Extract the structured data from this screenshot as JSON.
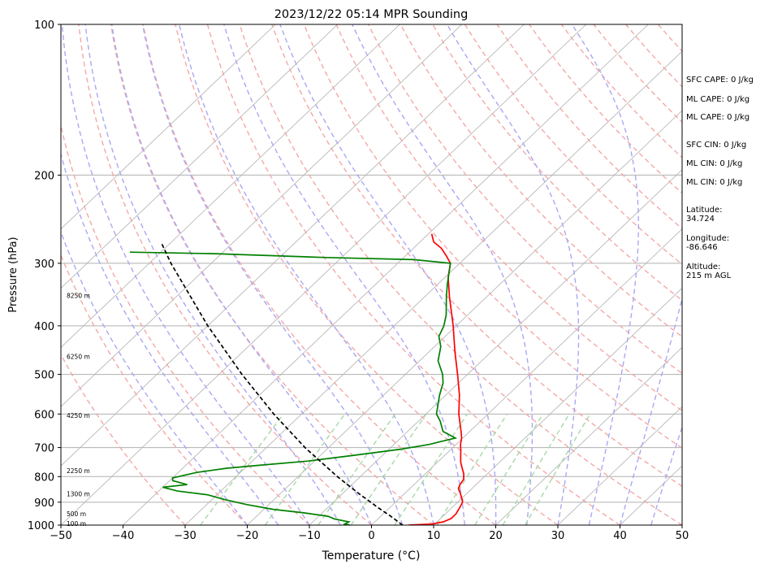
{
  "chart_data": {
    "type": "skew-t",
    "title": "2023/12/22 05:14 MPR Sounding",
    "xlabel": "Temperature (°C)",
    "ylabel": "Pressure (hPa)",
    "xlim": [
      -50,
      50
    ],
    "ylim": [
      1000,
      100
    ],
    "y_scale": "log",
    "grid": true,
    "x_ticks": [
      -50,
      -40,
      -30,
      -20,
      -10,
      0,
      10,
      20,
      30,
      40,
      50
    ],
    "y_ticks": [
      1000,
      900,
      800,
      700,
      600,
      500,
      400,
      300,
      200,
      100
    ],
    "series": [
      {
        "kind": "temperature",
        "color": "#ff0000",
        "points": [
          [
            1000,
            6.0
          ],
          [
            995,
            9.5
          ],
          [
            985,
            11.0
          ],
          [
            970,
            11.7
          ],
          [
            950,
            11.7
          ],
          [
            925,
            11.3
          ],
          [
            900,
            10.8
          ],
          [
            880,
            9.8
          ],
          [
            860,
            8.7
          ],
          [
            845,
            7.8
          ],
          [
            830,
            7.4
          ],
          [
            810,
            7.1
          ],
          [
            790,
            6.2
          ],
          [
            770,
            5.0
          ],
          [
            750,
            3.8
          ],
          [
            730,
            2.8
          ],
          [
            710,
            1.8
          ],
          [
            690,
            0.7
          ],
          [
            670,
            -0.2
          ],
          [
            650,
            -1.4
          ],
          [
            600,
            -4.7
          ],
          [
            550,
            -7.8
          ],
          [
            500,
            -11.6
          ],
          [
            450,
            -15.9
          ],
          [
            400,
            -20.5
          ],
          [
            350,
            -26.0
          ],
          [
            320,
            -29.5
          ],
          [
            300,
            -31.5
          ],
          [
            290,
            -33.4
          ],
          [
            280,
            -35.5
          ],
          [
            272,
            -37.8
          ],
          [
            262,
            -39.5
          ]
        ]
      },
      {
        "kind": "dewpoint",
        "color": "#008000",
        "points": [
          [
            1000,
            -3.5
          ],
          [
            995,
            -4.5
          ],
          [
            985,
            -4.2
          ],
          [
            972,
            -7.0
          ],
          [
            960,
            -8.5
          ],
          [
            945,
            -13.0
          ],
          [
            930,
            -18.5
          ],
          [
            910,
            -23.5
          ],
          [
            890,
            -27.8
          ],
          [
            870,
            -31.5
          ],
          [
            855,
            -37.0
          ],
          [
            840,
            -40.0
          ],
          [
            830,
            -36.5
          ],
          [
            815,
            -39.5
          ],
          [
            805,
            -40.0
          ],
          [
            795,
            -38.5
          ],
          [
            785,
            -37.0
          ],
          [
            770,
            -33.0
          ],
          [
            760,
            -28.5
          ],
          [
            745,
            -21.0
          ],
          [
            725,
            -14.5
          ],
          [
            705,
            -8.0
          ],
          [
            690,
            -4.3
          ],
          [
            680,
            -2.8
          ],
          [
            670,
            -1.2
          ],
          [
            650,
            -4.3
          ],
          [
            620,
            -6.5
          ],
          [
            600,
            -8.3
          ],
          [
            550,
            -11.0
          ],
          [
            520,
            -12.5
          ],
          [
            500,
            -14.0
          ],
          [
            470,
            -17.0
          ],
          [
            440,
            -19.0
          ],
          [
            420,
            -21.0
          ],
          [
            400,
            -22.0
          ],
          [
            380,
            -23.5
          ],
          [
            350,
            -26.5
          ],
          [
            330,
            -28.5
          ],
          [
            300,
            -31.5
          ],
          [
            295,
            -38.0
          ],
          [
            292,
            -53.0
          ],
          [
            287,
            -71.0
          ],
          [
            285,
            -85.0
          ]
        ]
      },
      {
        "kind": "parcel",
        "color": "#000000",
        "style": "dashed",
        "points": [
          [
            1000,
            5.0
          ],
          [
            960,
            1.6
          ],
          [
            925,
            -1.7
          ],
          [
            900,
            -4.0
          ],
          [
            870,
            -6.9
          ],
          [
            800,
            -13.7
          ],
          [
            700,
            -23.8
          ],
          [
            600,
            -34.5
          ],
          [
            500,
            -46.3
          ],
          [
            400,
            -60.0
          ],
          [
            300,
            -76.5
          ],
          [
            273,
            -81.5
          ]
        ]
      }
    ],
    "background_lines": {
      "isotherms_c": [
        -100,
        -90,
        -80,
        -70,
        -60,
        -50,
        -40,
        -30,
        -20,
        -10,
        0,
        10,
        20,
        30,
        40,
        50
      ],
      "dry_adiabats_c": [
        -30,
        -20,
        -10,
        0,
        10,
        20,
        30,
        40,
        50,
        60,
        70,
        80,
        90,
        100,
        110,
        120,
        130,
        140,
        150,
        160,
        170,
        180,
        190,
        200
      ],
      "moist_adiabats_c": [
        -20,
        -15,
        -10,
        -5,
        0,
        5,
        10,
        15,
        20,
        25,
        30,
        35,
        40,
        45
      ],
      "mixing_ratios_gkg": [
        0.4,
        1,
        2,
        3,
        5,
        8,
        12,
        16,
        20
      ],
      "colors": {
        "isotherm": "#b0b0b0",
        "dry_adiabat": "#f4a8a8",
        "moist_adiabat": "#a8a8f4",
        "mixing_ratio": "#a8d8a8"
      }
    },
    "height_labels": [
      {
        "text": "100 m",
        "p": 992
      },
      {
        "text": "500 m",
        "p": 949
      },
      {
        "text": "1300 m",
        "p": 866
      },
      {
        "text": "2250 m",
        "p": 778
      },
      {
        "text": "4250 m",
        "p": 604
      },
      {
        "text": "6250 m",
        "p": 460
      },
      {
        "text": "8250 m",
        "p": 348
      }
    ]
  },
  "info": {
    "sfc_cape": "SFC CAPE: 0 J/kg",
    "ml_cape_1": "ML CAPE: 0 J/kg",
    "ml_cape_2": "ML CAPE: 0 J/kg",
    "sfc_cin": "SFC CIN: 0 J/kg",
    "ml_cin_1": "ML CIN: 0 J/kg",
    "ml_cin_2": "ML CIN: 0 J/kg",
    "latitude_label": "Latitude:",
    "latitude_value": "34.724",
    "longitude_label": "Longitude:",
    "longitude_value": "-86.646",
    "altitude_label": "Altitude:",
    "altitude_value": "215 m AGL"
  }
}
